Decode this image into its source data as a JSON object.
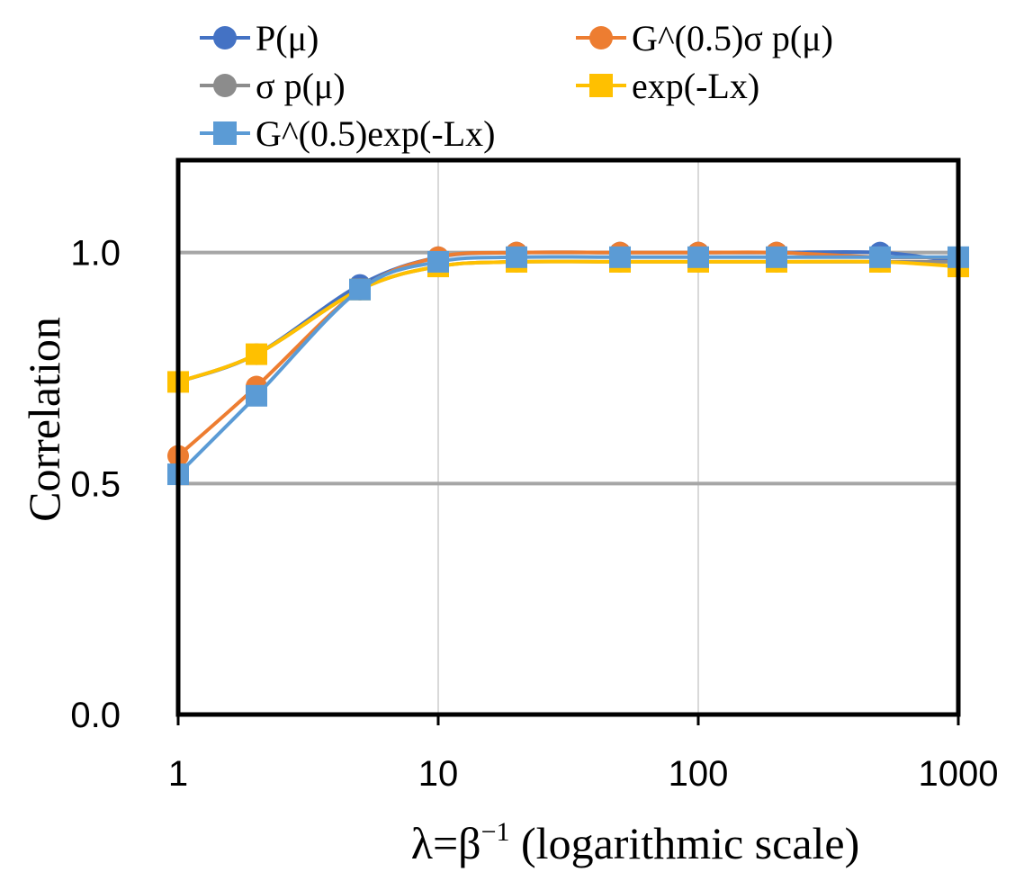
{
  "chart_data": {
    "type": "line",
    "xscale": "log",
    "x": [
      1,
      2,
      5,
      10,
      20,
      50,
      100,
      200,
      500,
      1000
    ],
    "xlim": [
      1,
      1000
    ],
    "ylim": [
      0,
      1.2
    ],
    "xticks": [
      "1",
      "10",
      "100",
      "1000"
    ],
    "yticks": [
      "0.0",
      "0.5",
      "1.0"
    ],
    "xlabel": "λ=β",
    "xlabel_sup": "−1",
    "xlabel_suffix": " (logarithmic scale)",
    "ylabel": "Correlation",
    "legend_position": "top",
    "series": [
      {
        "name": "P(μ)",
        "color": "#4472C4",
        "marker": "circle",
        "values": [
          0.72,
          0.78,
          0.93,
          0.99,
          1.0,
          1.0,
          1.0,
          1.0,
          1.0,
          0.98
        ]
      },
      {
        "name": "G^(0.5)σ p(μ)",
        "color": "#ED7D31",
        "marker": "circle",
        "values": [
          0.56,
          0.71,
          0.92,
          0.99,
          1.0,
          1.0,
          1.0,
          1.0,
          0.99,
          0.99
        ]
      },
      {
        "name": "σ p(μ)",
        "color": "#8C8C8C",
        "marker": "circle",
        "values": [
          0.72,
          0.78,
          0.92,
          0.97,
          0.98,
          0.98,
          0.98,
          0.98,
          0.98,
          0.98
        ]
      },
      {
        "name": "exp(-Lx)",
        "color": "#FFC000",
        "marker": "square",
        "values": [
          0.72,
          0.78,
          0.92,
          0.97,
          0.98,
          0.98,
          0.98,
          0.98,
          0.98,
          0.97
        ]
      },
      {
        "name": "G^(0.5)exp(-Lx)",
        "color": "#5B9BD5",
        "marker": "square",
        "values": [
          0.52,
          0.69,
          0.92,
          0.98,
          0.99,
          0.99,
          0.99,
          0.99,
          0.99,
          0.99
        ]
      }
    ]
  }
}
